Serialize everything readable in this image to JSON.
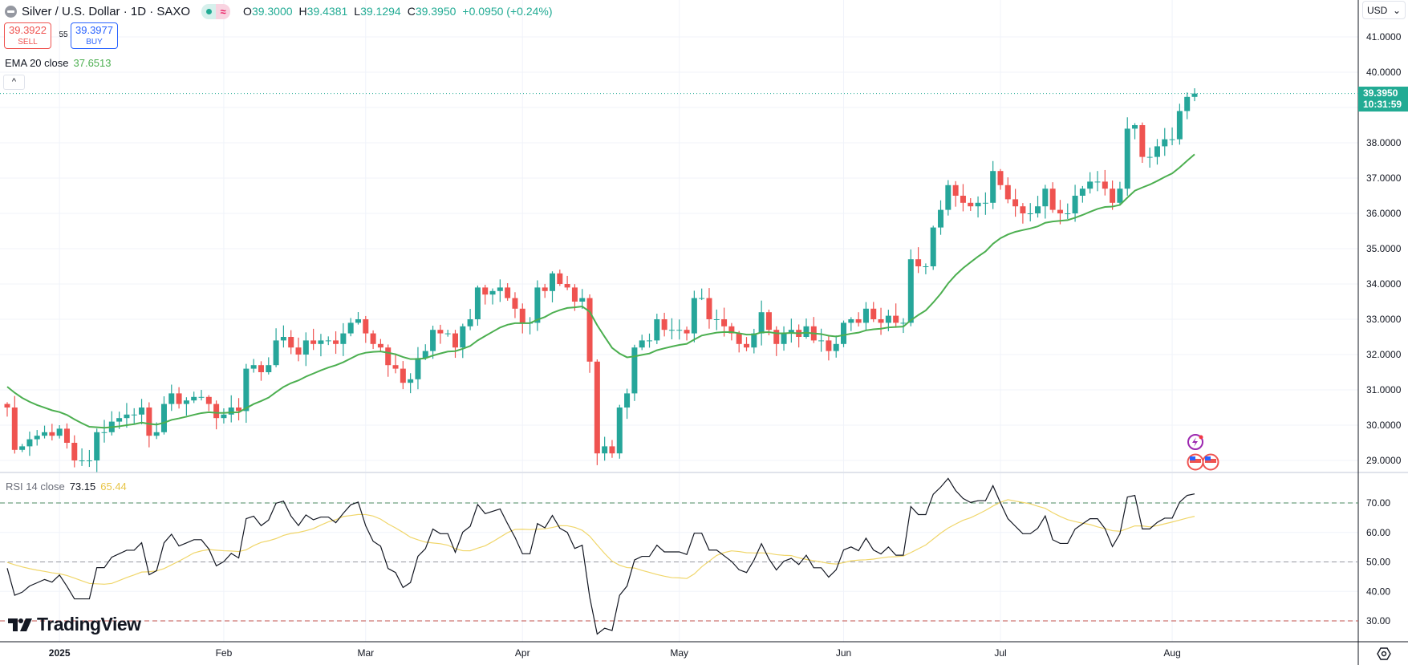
{
  "header": {
    "symbol_title": "Silver / U.S. Dollar · 1D · SAXO",
    "status_wave": "≈",
    "ohlc": {
      "o_label": "O",
      "o": "39.3000",
      "h_label": "H",
      "h": "39.4381",
      "l_label": "L",
      "l": "39.1294",
      "c_label": "C",
      "c": "39.3950",
      "change": "+0.0950 (+0.24%)"
    }
  },
  "trade": {
    "sell_price": "39.3922",
    "sell_label": "SELL",
    "spread": "55",
    "buy_price": "39.3977",
    "buy_label": "BUY"
  },
  "indicators": {
    "ema_label": "EMA 20 close",
    "ema_value": "37.6513",
    "rsi_label": "RSI 14 close",
    "rsi_value": "73.15",
    "rsi_ma_value": "65.44",
    "collapse_icon": "^"
  },
  "price_axis": {
    "currency": "USD",
    "dropdown_icon": "⌄",
    "current_price": "39.3950",
    "countdown": "10:31:59"
  },
  "logo_text": "TradingView",
  "colors": {
    "up": "#26a69a",
    "down": "#ef5350",
    "ema": "#4caf50",
    "rsi": "#131722",
    "rsi_ma": "#f0d66a",
    "current": "#22ab94"
  },
  "chart_data": {
    "type": "candlestick",
    "title": "Silver / U.S. Dollar · 1D · SAXO",
    "price_ticks": [
      "41.0000",
      "40.0000",
      "38.0000",
      "37.0000",
      "36.0000",
      "35.0000",
      "34.0000",
      "33.0000",
      "32.0000",
      "31.0000",
      "30.0000",
      "29.0000"
    ],
    "price_tick_values": [
      41,
      40,
      38,
      37,
      36,
      35,
      34,
      33,
      32,
      31,
      30,
      29
    ],
    "ylim": [
      28.0,
      42.05
    ],
    "rsi_ticks": [
      "70.00",
      "60.00",
      "50.00",
      "40.00",
      "30.00"
    ],
    "rsi_tick_values": [
      70,
      60,
      50,
      40,
      30
    ],
    "rsi_levels": {
      "upper": 70,
      "middle": 50,
      "lower": 30
    },
    "x_labels": [
      "2025",
      "Feb",
      "Mar",
      "Apr",
      "May",
      "Jun",
      "Jul",
      "Aug"
    ],
    "x_label_day_index": [
      7,
      29,
      48,
      69,
      90,
      112,
      133,
      156
    ],
    "closes": [
      30.5,
      29.3,
      29.4,
      29.6,
      29.7,
      29.8,
      29.7,
      29.9,
      29.5,
      29.0,
      29.0,
      29.0,
      29.8,
      29.8,
      30.1,
      30.2,
      30.3,
      30.3,
      30.5,
      29.7,
      29.8,
      30.6,
      30.9,
      30.6,
      30.7,
      30.8,
      30.8,
      30.6,
      30.2,
      30.3,
      30.5,
      30.4,
      31.6,
      31.7,
      31.5,
      31.7,
      32.4,
      32.5,
      32.2,
      32.0,
      32.4,
      32.3,
      32.4,
      32.4,
      32.3,
      32.6,
      32.9,
      33.0,
      32.6,
      32.3,
      32.2,
      31.7,
      31.6,
      31.2,
      31.3,
      31.9,
      32.1,
      32.7,
      32.6,
      32.6,
      32.2,
      32.8,
      33.0,
      33.9,
      33.7,
      33.8,
      33.9,
      33.6,
      33.3,
      32.9,
      32.9,
      33.9,
      33.8,
      34.3,
      34.0,
      33.9,
      33.5,
      33.6,
      31.8,
      29.2,
      29.4,
      29.2,
      30.5,
      30.9,
      32.2,
      32.4,
      32.4,
      33.0,
      32.7,
      32.7,
      32.7,
      32.6,
      33.6,
      33.6,
      33.0,
      33.0,
      32.8,
      32.6,
      32.3,
      32.2,
      32.6,
      33.2,
      32.7,
      32.3,
      32.6,
      32.7,
      32.5,
      32.8,
      32.4,
      32.4,
      32.1,
      32.3,
      32.9,
      33.0,
      32.9,
      33.3,
      33.0,
      32.9,
      33.1,
      32.9,
      32.9,
      34.7,
      34.5,
      34.5,
      35.6,
      36.1,
      36.8,
      36.5,
      36.3,
      36.2,
      36.3,
      36.3,
      37.2,
      36.8,
      36.4,
      36.2,
      36.0,
      36.0,
      36.2,
      36.7,
      36.1,
      36.0,
      36.0,
      36.5,
      36.7,
      36.9,
      36.9,
      36.7,
      36.3,
      36.7,
      38.4,
      38.5,
      37.6,
      37.6,
      37.9,
      38.1,
      38.1,
      38.9,
      39.3,
      39.395
    ],
    "first_open": 30.6,
    "ema_period": 20,
    "rsi_period": 14,
    "last_ema": 37.6513,
    "last_rsi": 73.15,
    "last_rsi_ma": 65.44
  }
}
